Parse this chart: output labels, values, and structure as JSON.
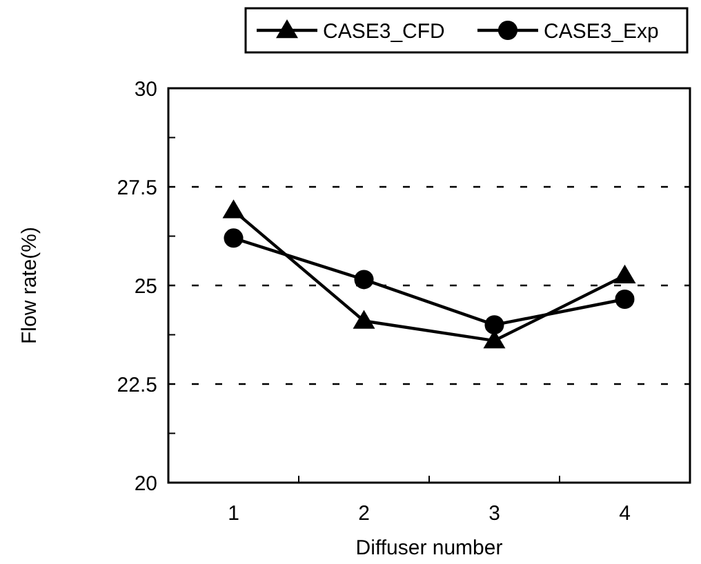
{
  "chart_data": {
    "type": "line",
    "xlabel": "Diffuser number",
    "ylabel": "Flow rate(%)",
    "categories": [
      "1",
      "2",
      "3",
      "4"
    ],
    "series": [
      {
        "name": "CASE3_CFD",
        "color": "#000000",
        "marker": "triangle",
        "values": [
          26.9,
          24.1,
          23.6,
          25.25
        ]
      },
      {
        "name": "CASE3_Exp",
        "color": "#000000",
        "marker": "circle",
        "values": [
          26.2,
          25.15,
          24.0,
          24.65
        ]
      }
    ],
    "ylim": [
      20,
      30
    ],
    "yticks": [
      20,
      {
        "value": 21.25,
        "label": null
      },
      22.5,
      {
        "value": 23.75,
        "label": null
      },
      25,
      {
        "value": 26.25,
        "label": null
      },
      27.5,
      {
        "value": 28.75,
        "label": null
      },
      30
    ],
    "grid": "y",
    "legend": "top",
    "line_style": "solid"
  }
}
